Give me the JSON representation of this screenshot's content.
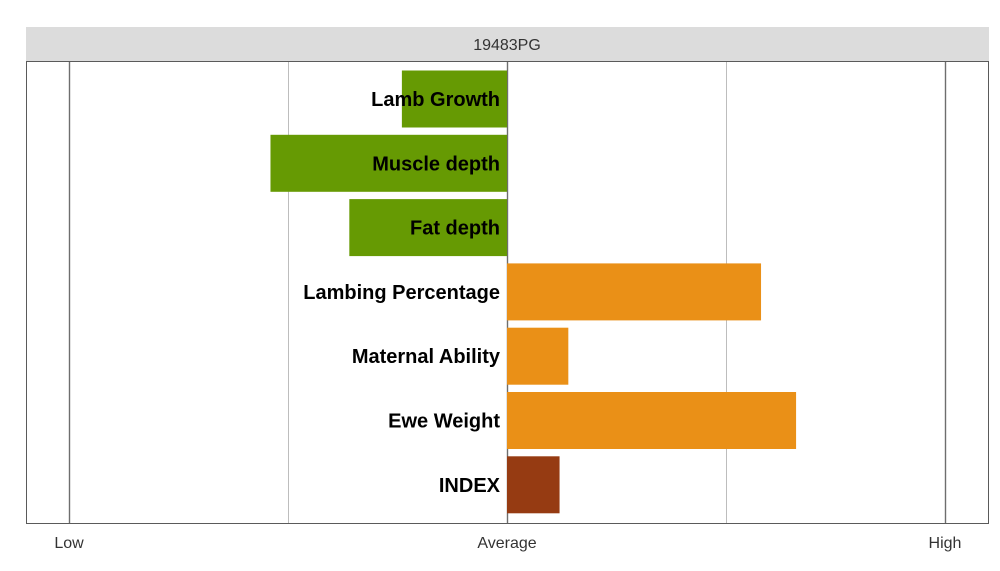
{
  "chart_data": {
    "type": "bar",
    "orientation": "horizontal",
    "title": "19483PG",
    "xlim": [
      -1,
      1
    ],
    "x_ticks": [
      {
        "value": -1,
        "label": "Low"
      },
      {
        "value": 0,
        "label": "Average"
      },
      {
        "value": 1,
        "label": "High"
      }
    ],
    "gridlines_x": [
      -1,
      -0.5,
      0,
      0.5,
      1
    ],
    "categories": [
      "Lamb Growth",
      "Muscle depth",
      "Fat depth",
      "Lambing Percentage",
      "Maternal Ability",
      "Ewe Weight",
      "INDEX"
    ],
    "values": [
      -0.24,
      -0.54,
      -0.36,
      0.58,
      0.14,
      0.66,
      0.12
    ],
    "bar_colors": [
      "#669a03",
      "#669a03",
      "#669a03",
      "#ea9017",
      "#ea9017",
      "#ea9017",
      "#963b12"
    ]
  }
}
